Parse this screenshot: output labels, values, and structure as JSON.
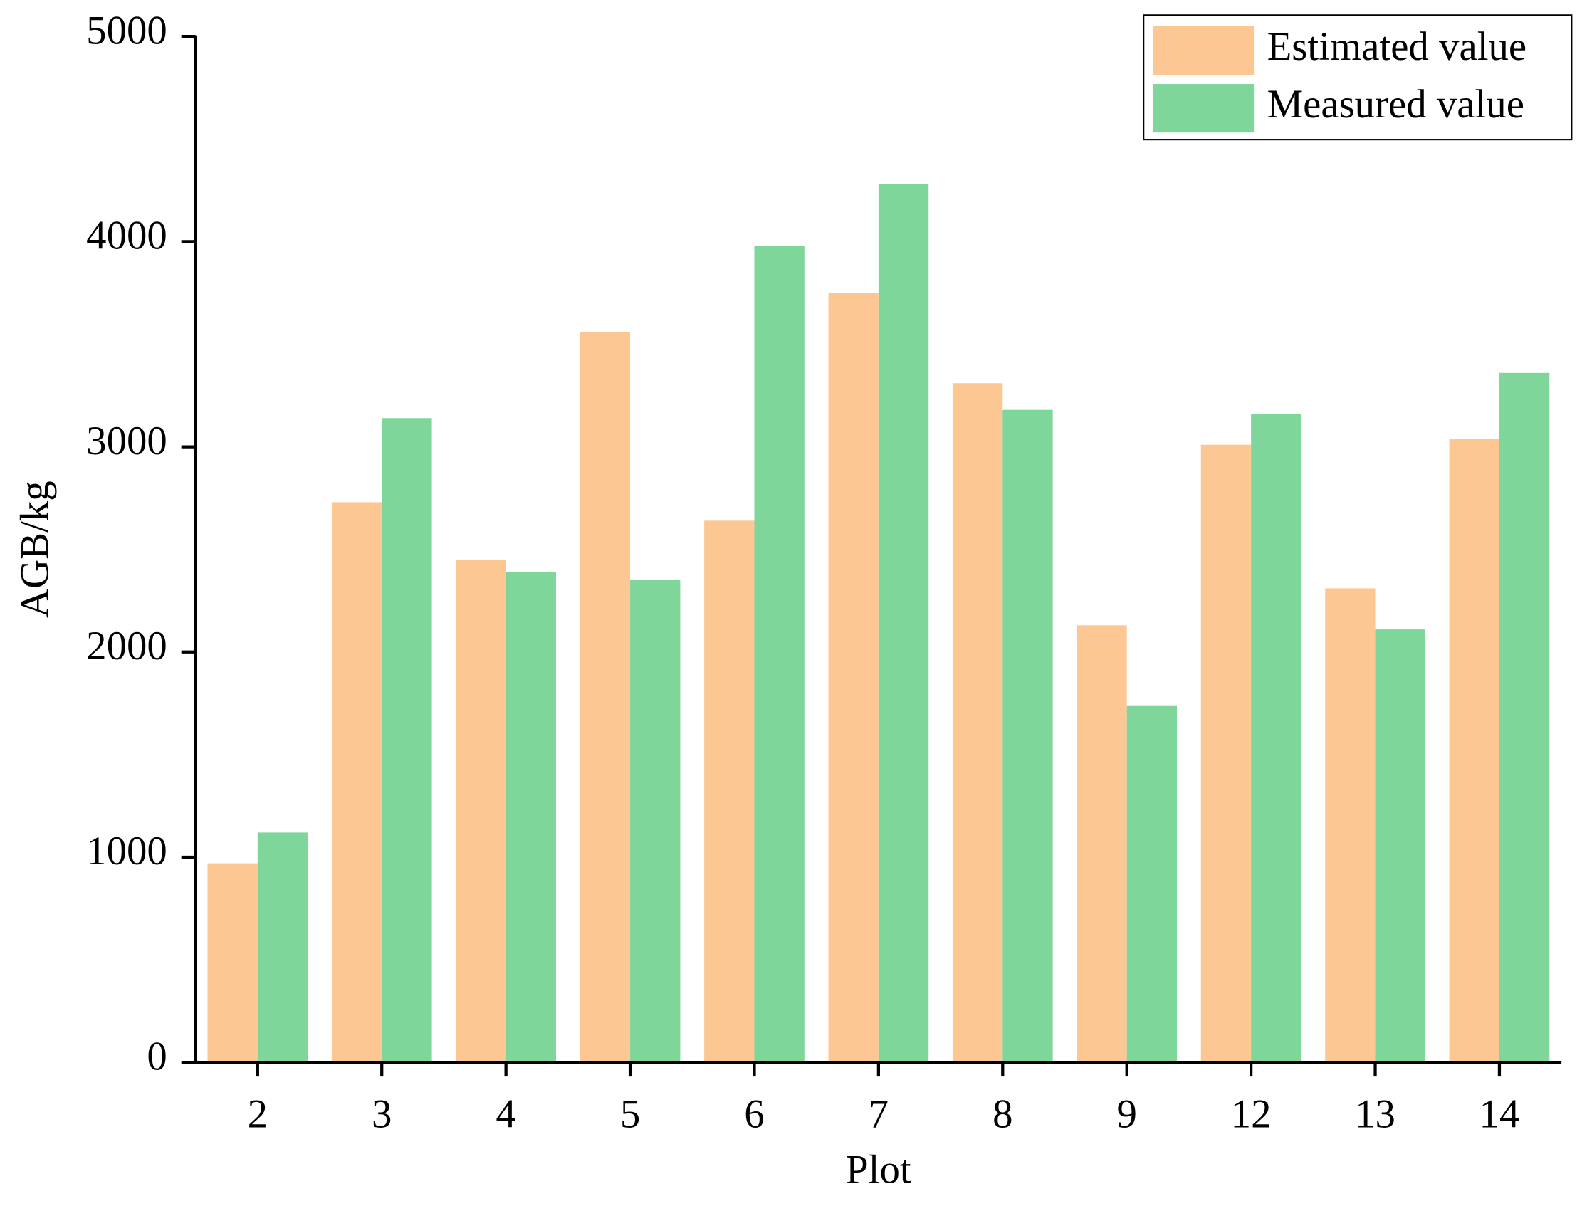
{
  "chart_data": {
    "type": "bar",
    "x_label": "Plot",
    "y_label": "AGB/kg",
    "categories": [
      "2",
      "3",
      "4",
      "5",
      "6",
      "7",
      "8",
      "9",
      "12",
      "13",
      "14"
    ],
    "series": [
      {
        "name": "Estimated value",
        "color": "#fdc794",
        "values": [
          970,
          2730,
          2450,
          3560,
          2640,
          3750,
          3310,
          2130,
          3010,
          2310,
          3040
        ]
      },
      {
        "name": "Measured value",
        "color": "#7fd69a",
        "values": [
          1120,
          3140,
          2390,
          2350,
          3980,
          4280,
          3180,
          1740,
          3160,
          2110,
          3360
        ]
      }
    ],
    "ylim": [
      0,
      5000
    ],
    "yticks": [
      0,
      1000,
      2000,
      3000,
      4000,
      5000
    ],
    "legend": "top-right"
  }
}
